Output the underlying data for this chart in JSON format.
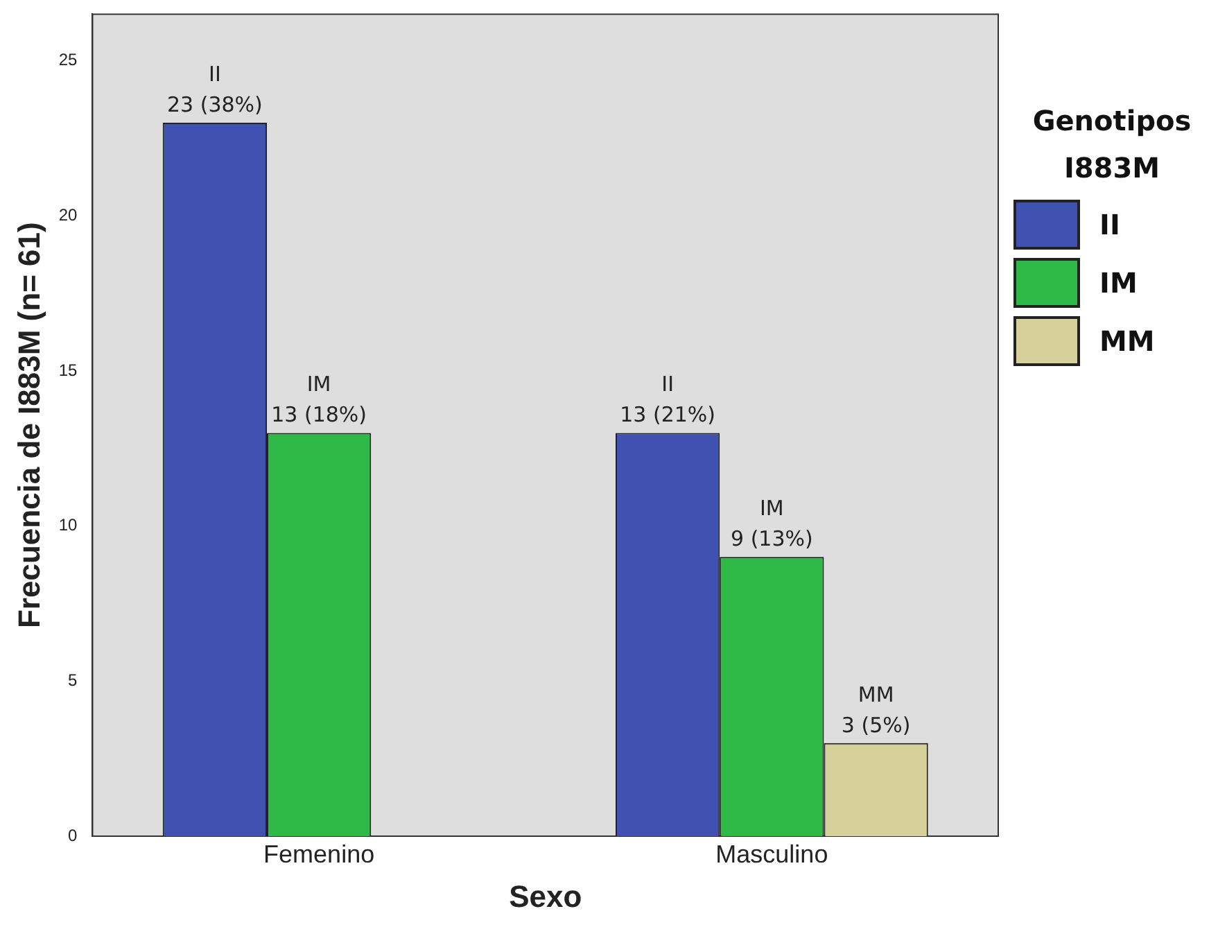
{
  "chart_data": {
    "type": "bar",
    "xlabel": "Sexo",
    "ylabel": "Frecuencia de I883M (n= 61)",
    "legend_title": "Genotipos I883M",
    "categories": [
      "Femenino",
      "Masculino"
    ],
    "series": [
      {
        "name": "II",
        "color": "#3f51b1",
        "values": [
          23,
          13
        ],
        "value_labels": [
          "23 (38%)",
          "13 (21%)"
        ]
      },
      {
        "name": "IM",
        "color": "#2fba48",
        "values": [
          13,
          9
        ],
        "value_labels": [
          "13 (18%)",
          "9 (13%)"
        ]
      },
      {
        "name": "MM",
        "color": "#d6d09a",
        "values": [
          null,
          3
        ],
        "value_labels": [
          null,
          "3 (5%)"
        ]
      }
    ],
    "ylim": [
      0,
      26.5
    ],
    "yticks": [
      0,
      5,
      10,
      15,
      20,
      25
    ],
    "grid": false,
    "legend": "right"
  }
}
